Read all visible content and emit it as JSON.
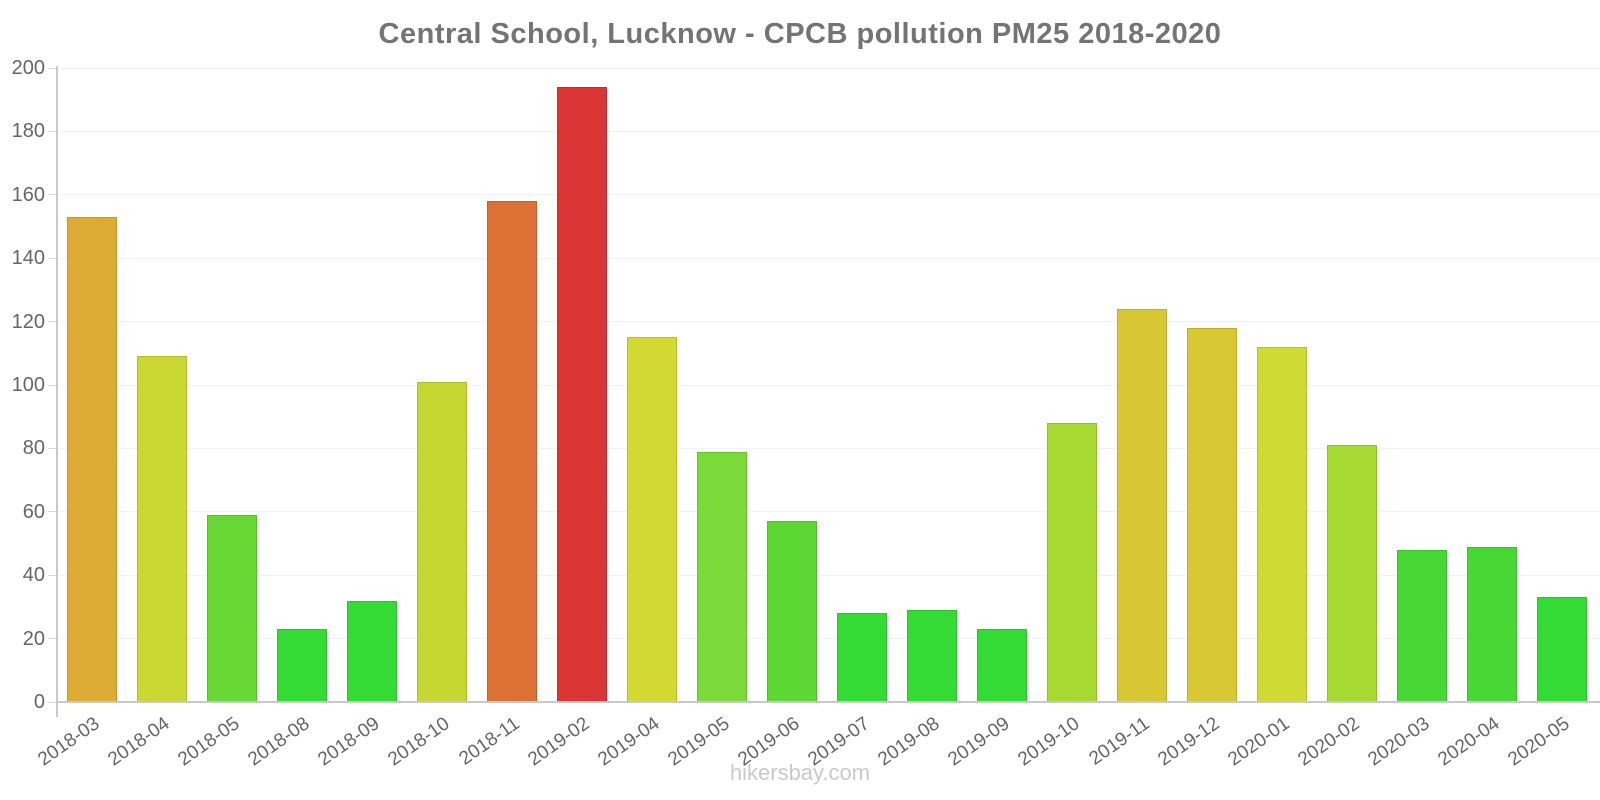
{
  "page": {
    "watermark": "hikersbay.com"
  },
  "chart_data": {
    "type": "bar",
    "title": "Central School, Lucknow - CPCB pollution PM25 2018-2020",
    "categories": [
      "2018-03",
      "2018-04",
      "2018-05",
      "2018-08",
      "2018-09",
      "2018-10",
      "2018-11",
      "2019-02",
      "2019-04",
      "2019-05",
      "2019-06",
      "2019-07",
      "2019-08",
      "2019-09",
      "2019-10",
      "2019-11",
      "2019-12",
      "2020-01",
      "2020-02",
      "2020-03",
      "2020-04",
      "2020-05"
    ],
    "values": [
      153,
      109,
      59,
      23,
      32,
      101,
      158,
      194,
      115,
      79,
      57,
      28,
      29,
      23,
      88,
      124,
      118,
      112,
      81,
      48,
      49,
      33
    ],
    "bar_colors": [
      "#DCAC34",
      "#CBD733",
      "#68D934",
      "#35DB35",
      "#35DB35",
      "#C6D733",
      "#DC7135",
      "#DC3535",
      "#D2D933",
      "#7BD93A",
      "#5DD734",
      "#35DB35",
      "#35DB35",
      "#35DB35",
      "#A7D933",
      "#D9C633",
      "#D8C833",
      "#CFDB33",
      "#A7D933",
      "#47D836",
      "#47D836",
      "#35DB35"
    ],
    "ylabel": "",
    "xlabel": "",
    "ylim": [
      0,
      200
    ],
    "yticks": [
      0,
      20,
      40,
      60,
      80,
      100,
      120,
      140,
      160,
      180,
      200
    ],
    "grid": true,
    "legend": "none",
    "x_tick_rotation_deg": -35,
    "style": {
      "title_color": "#747474",
      "tick_label_color": "#666666",
      "axis_color": "#c9c9c9",
      "grid_color": "#f2f2f2",
      "watermark_color": "#c9c9c9"
    }
  }
}
